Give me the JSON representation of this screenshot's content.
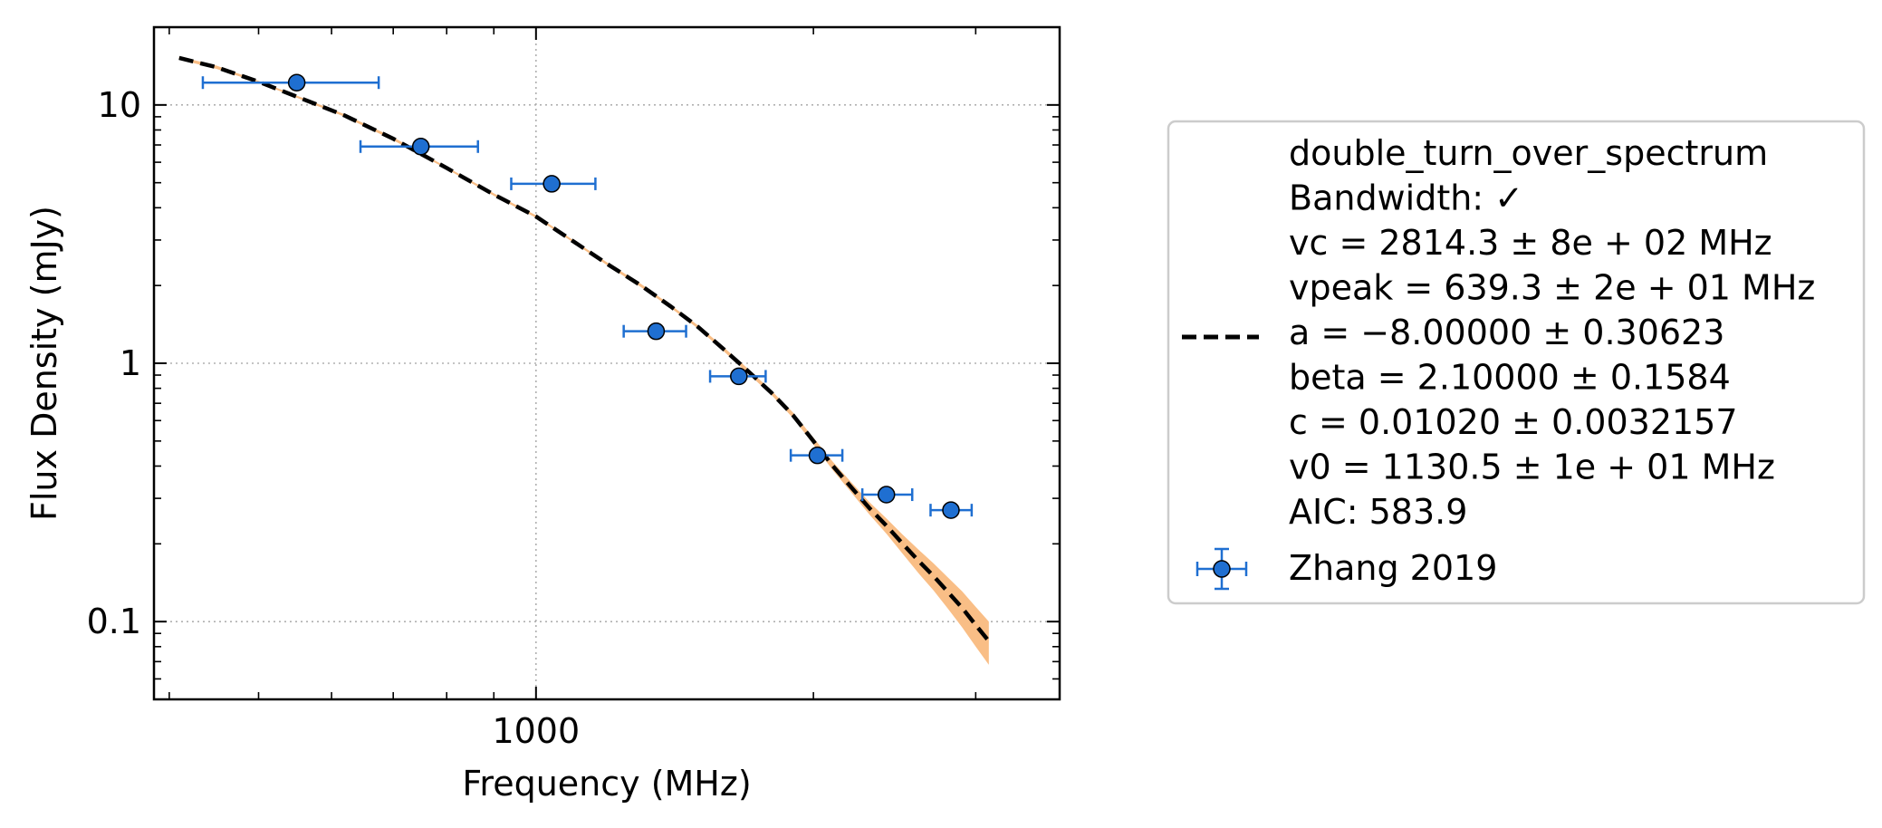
{
  "chart_data": {
    "type": "scatter",
    "title": "",
    "xlabel": "Frequency (MHz)",
    "ylabel": "Flux Density (mJy)",
    "x_scale": "log",
    "y_scale": "log",
    "xlim": [
      385,
      3700
    ],
    "ylim": [
      0.05,
      20.0
    ],
    "x_ticks": [
      {
        "value": 1000,
        "label": "1000"
      }
    ],
    "y_ticks": [
      {
        "value": 0.1,
        "label": "0.1"
      },
      {
        "value": 1,
        "label": "1"
      },
      {
        "value": 10,
        "label": "10"
      }
    ],
    "grid": true,
    "legend_position": "outside right",
    "series": [
      {
        "name": "Zhang 2019",
        "kind": "errorbar",
        "color": "#1f6fd1",
        "x": [
          550,
          750,
          1040,
          1350,
          1660,
          2020,
          2400,
          2820
        ],
        "xerr_low": [
          115,
          105,
          100,
          105,
          115,
          130,
          140,
          140
        ],
        "xerr_high": [
          125,
          115,
          120,
          105,
          115,
          130,
          160,
          150
        ],
        "y": [
          12.2,
          6.9,
          4.95,
          1.33,
          0.89,
          0.44,
          0.31,
          0.27
        ]
      },
      {
        "name": "",
        "kind": "fit",
        "style": "dashed",
        "color": "#000000",
        "band_color": "#f9be86",
        "x": [
          410,
          450,
          500,
          560,
          620,
          700,
          800,
          900,
          1000,
          1100,
          1200,
          1300,
          1400,
          1500,
          1600,
          1700,
          1800,
          1900,
          2000,
          2100,
          2200,
          2300,
          2400,
          2500,
          2600,
          2700,
          2800,
          2900,
          3000,
          3100
        ],
        "y": [
          15.2,
          14.0,
          12.3,
          10.5,
          9.1,
          7.4,
          5.7,
          4.5,
          3.7,
          2.95,
          2.4,
          2.0,
          1.66,
          1.38,
          1.13,
          0.93,
          0.77,
          0.63,
          0.5,
          0.4,
          0.33,
          0.275,
          0.235,
          0.2,
          0.172,
          0.15,
          0.13,
          0.113,
          0.097,
          0.084
        ],
        "band_low": [
          15.0,
          13.8,
          12.2,
          10.4,
          9.0,
          7.3,
          5.65,
          4.45,
          3.66,
          2.92,
          2.37,
          1.97,
          1.64,
          1.36,
          1.11,
          0.91,
          0.755,
          0.615,
          0.485,
          0.385,
          0.315,
          0.26,
          0.219,
          0.183,
          0.154,
          0.132,
          0.112,
          0.095,
          0.08,
          0.068
        ],
        "band_high": [
          15.4,
          14.2,
          12.4,
          10.6,
          9.2,
          7.5,
          5.75,
          4.55,
          3.74,
          2.98,
          2.43,
          2.03,
          1.68,
          1.4,
          1.15,
          0.95,
          0.785,
          0.645,
          0.515,
          0.415,
          0.345,
          0.29,
          0.251,
          0.217,
          0.19,
          0.168,
          0.148,
          0.131,
          0.114,
          0.1
        ]
      }
    ],
    "legend": {
      "fit_lines": [
        "double_turn_over_spectrum",
        "Bandwidth: ✓",
        "vc = 2814.3 ± 8e + 02 MHz",
        "vpeak = 639.3 ± 2e + 01 MHz",
        "a = −8.00000 ± 0.30623",
        "beta = 2.10000 ± 0.1584",
        "c = 0.01020 ± 0.0032157",
        "v0 = 1130.5 ± 1e + 01 MHz",
        "AIC: 583.9"
      ],
      "data_label": "Zhang 2019"
    }
  }
}
